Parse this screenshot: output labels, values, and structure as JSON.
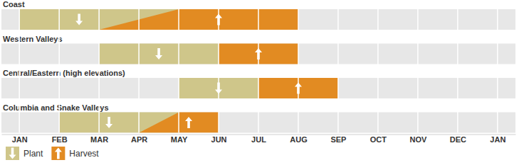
{
  "chart_data": {
    "type": "timeline",
    "orientation": "horizontal",
    "categories": [
      "Coast",
      "Western Valleys",
      "Central/Eastern (high elevations)",
      "Columbia and Snake Valleys"
    ],
    "series": [
      {
        "name": "Plant",
        "color": "#cfc68a",
        "marker": "arrow-down",
        "values": [
          [
            0,
            4
          ],
          [
            2,
            5
          ],
          [
            4,
            6
          ],
          [
            1,
            4
          ]
        ]
      },
      {
        "name": "Harvest",
        "color": "#e28b22",
        "marker": "arrow-up",
        "values": [
          [
            2,
            7
          ],
          [
            5,
            7
          ],
          [
            6,
            8
          ],
          [
            3,
            5
          ]
        ]
      }
    ],
    "xlim": [
      -0.45,
      12.45
    ],
    "xticks": [
      {
        "value": 0,
        "label": "JAN"
      },
      {
        "value": 1,
        "label": "FEB"
      },
      {
        "value": 2,
        "label": "MAR"
      },
      {
        "value": 3,
        "label": "APR"
      },
      {
        "value": 4,
        "label": "MAY"
      },
      {
        "value": 5,
        "label": "JUN"
      },
      {
        "value": 6,
        "label": "JUL"
      },
      {
        "value": 7,
        "label": "AUG"
      },
      {
        "value": 8,
        "label": "SEP"
      },
      {
        "value": 9,
        "label": "OCT"
      },
      {
        "value": 10,
        "label": "NOV"
      },
      {
        "value": 11,
        "label": "DEC"
      },
      {
        "value": 12,
        "label": "JAN"
      }
    ],
    "grid": true,
    "legend": "bottom left"
  }
}
